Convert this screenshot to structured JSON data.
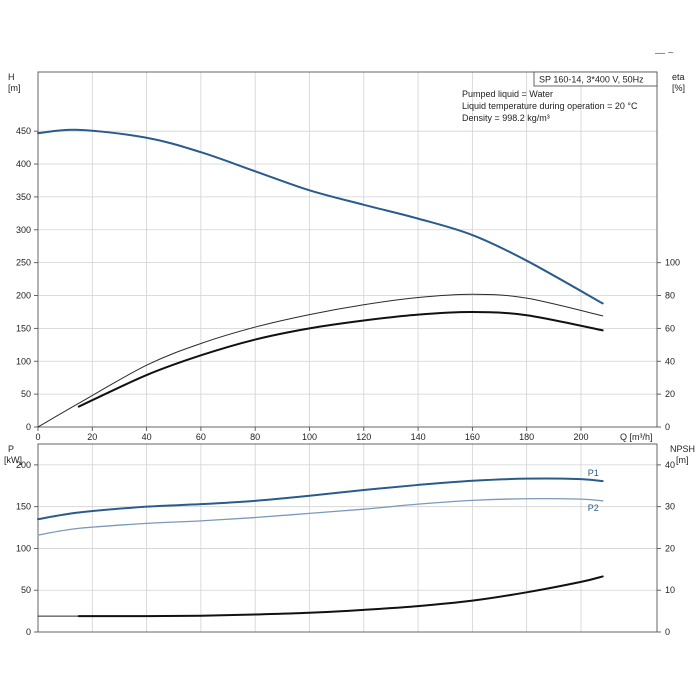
{
  "colors": {
    "dark_blue": "#2a5b8d",
    "light_blue": "#7a99bd",
    "black": "#111111",
    "thin_black": "#2a2a2a"
  },
  "corner_mark": "— ~",
  "chart_data": [
    {
      "type": "line",
      "legend": {
        "box_title": "SP 160-14, 3*400 V, 50Hz",
        "lines": [
          "Pumped liquid = Water",
          "Liquid temperature during operation = 20 °C",
          "Density = 998.2 kg/m³"
        ]
      },
      "xlabel": "Q [m³/h]",
      "xlim": [
        0,
        228
      ],
      "xticks": [
        0,
        20,
        40,
        60,
        80,
        100,
        120,
        140,
        160,
        180,
        200
      ],
      "y_left": {
        "label_lines": [
          "H",
          "[m]"
        ],
        "lim": [
          0,
          540
        ],
        "ticks": [
          0,
          50,
          100,
          150,
          200,
          250,
          300,
          350,
          400,
          450
        ]
      },
      "y_right": {
        "label_lines": [
          "eta",
          "[%]"
        ],
        "lim": [
          0,
          216
        ],
        "ticks": [
          0,
          20,
          40,
          60,
          80,
          100
        ]
      },
      "series": [
        {
          "key": "H",
          "axis": "left",
          "color": "dark_blue",
          "width": 2,
          "x": [
            0,
            15,
            40,
            60,
            80,
            100,
            120,
            140,
            160,
            180,
            208
          ],
          "y": [
            447,
            452,
            440,
            418,
            389,
            360,
            338,
            317,
            292,
            253,
            188
          ]
        },
        {
          "key": "eta_top",
          "axis": "right",
          "color": "thin_black",
          "width": 1,
          "x": [
            0,
            15,
            40,
            60,
            80,
            100,
            120,
            140,
            160,
            180,
            208
          ],
          "y": [
            0,
            14.4,
            37.6,
            50.8,
            60.8,
            68.4,
            74.4,
            78.8,
            80.8,
            78.4,
            67.6
          ]
        },
        {
          "key": "eta_bottom",
          "axis": "right",
          "color": "black",
          "width": 2,
          "x": [
            15,
            40,
            60,
            80,
            100,
            120,
            140,
            160,
            180,
            208
          ],
          "y": [
            12.4,
            31.6,
            43.6,
            53.2,
            60,
            64.8,
            68.4,
            70,
            68,
            58.8
          ]
        }
      ]
    },
    {
      "type": "line",
      "xlim": [
        0,
        228
      ],
      "y_left": {
        "label_lines": [
          "P",
          "[kW]"
        ],
        "lim": [
          0,
          225
        ],
        "ticks": [
          0,
          50,
          100,
          150,
          200
        ]
      },
      "y_right": {
        "label_lines": [
          "NPSH",
          "[m]"
        ],
        "lim": [
          0,
          45
        ],
        "ticks": [
          0,
          10,
          20,
          30,
          40
        ]
      },
      "series": [
        {
          "key": "P1",
          "name": "P1",
          "axis": "left",
          "color": "dark_blue",
          "width": 2,
          "x": [
            0,
            15,
            40,
            60,
            80,
            100,
            120,
            140,
            160,
            180,
            200,
            208
          ],
          "y": [
            135,
            143,
            150,
            153,
            157,
            163,
            170,
            176,
            181,
            183.5,
            183,
            180.5
          ]
        },
        {
          "key": "P2",
          "name": "P2",
          "axis": "left",
          "color": "light_blue",
          "width": 1.3,
          "x": [
            0,
            15,
            40,
            60,
            80,
            100,
            120,
            140,
            160,
            180,
            200,
            208
          ],
          "y": [
            116,
            124,
            130,
            133,
            137,
            142,
            147,
            153,
            157.5,
            159.5,
            159,
            157
          ]
        },
        {
          "key": "NPSH_low",
          "axis": "right",
          "color": "thin_black",
          "width": 0.9,
          "x": [
            0,
            15
          ],
          "y": [
            3.8,
            3.8
          ]
        },
        {
          "key": "NPSH",
          "axis": "right",
          "color": "black",
          "width": 2,
          "x": [
            15,
            40,
            60,
            80,
            100,
            120,
            140,
            160,
            180,
            200,
            208
          ],
          "y": [
            3.8,
            3.8,
            3.9,
            4.2,
            4.6,
            5.3,
            6.2,
            7.5,
            9.5,
            12,
            13.3
          ]
        }
      ]
    }
  ]
}
